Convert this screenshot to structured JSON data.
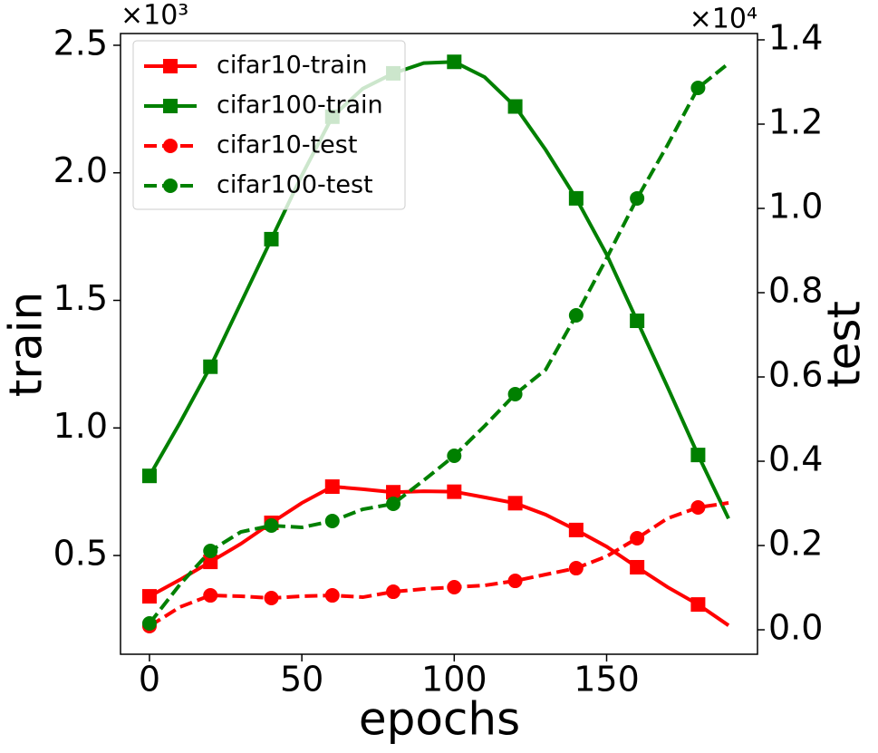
{
  "chart_data": {
    "type": "line",
    "x_label": "epochs",
    "y_label": "train",
    "y2_label": "test",
    "y_offset_label": "×10³",
    "y2_offset_label": "×10⁴",
    "x": [
      0,
      10,
      20,
      30,
      40,
      50,
      60,
      70,
      80,
      90,
      100,
      110,
      120,
      130,
      140,
      150,
      160,
      170,
      180,
      190
    ],
    "series": [
      {
        "name": "cifar10-train",
        "color": "#ff0000",
        "marker": "square",
        "linestyle": "solid",
        "axis": "y",
        "values": [
          340,
          405,
          475,
          546,
          628,
          706,
          770,
          760,
          748,
          752,
          750,
          728,
          705,
          660,
          600,
          535,
          454,
          376,
          308,
          226
        ]
      },
      {
        "name": "cifar100-train",
        "color": "#008000",
        "marker": "square",
        "linestyle": "solid",
        "axis": "y",
        "values": [
          812,
          1020,
          1240,
          1490,
          1740,
          1990,
          2220,
          2330,
          2390,
          2430,
          2435,
          2375,
          2260,
          2090,
          1900,
          1680,
          1420,
          1160,
          894,
          645
        ]
      },
      {
        "name": "cifar10-test",
        "color": "#ff0000",
        "marker": "circle",
        "linestyle": "dashed",
        "axis": "y2",
        "values": [
          86,
          540,
          817,
          796,
          753,
          796,
          817,
          774,
          903,
          968,
          1011,
          1054,
          1161,
          1312,
          1462,
          1742,
          2172,
          2645,
          2903,
          3011
        ]
      },
      {
        "name": "cifar100-test",
        "color": "#008000",
        "marker": "circle",
        "linestyle": "dashed",
        "axis": "y2",
        "values": [
          151,
          1075,
          1871,
          2323,
          2473,
          2430,
          2581,
          2860,
          2989,
          3548,
          4129,
          4839,
          5591,
          6172,
          7462,
          8817,
          10237,
          11505,
          12860,
          13441
        ]
      }
    ],
    "markevery": 2,
    "xlim": [
      -9.5,
      199.5
    ],
    "xticks": [
      0,
      50,
      100,
      150
    ],
    "ylim": [
      113,
      2546
    ],
    "yticks": [
      {
        "value": 500,
        "label": "0.5"
      },
      {
        "value": 1000,
        "label": "1.0"
      },
      {
        "value": 1500,
        "label": "1.5"
      },
      {
        "value": 2000,
        "label": "2.0"
      },
      {
        "value": 2500,
        "label": "2.5"
      }
    ],
    "y2lim": [
      -580,
      14150
    ],
    "y2ticks": [
      {
        "value": 0,
        "label": "0.0"
      },
      {
        "value": 2000,
        "label": "0.2"
      },
      {
        "value": 4000,
        "label": "0.4"
      },
      {
        "value": 6000,
        "label": "0.6"
      },
      {
        "value": 8000,
        "label": "0.8"
      },
      {
        "value": 10000,
        "label": "1.0"
      },
      {
        "value": 12000,
        "label": "1.2"
      },
      {
        "value": 14000,
        "label": "1.4"
      }
    ],
    "legend": "upper left",
    "grid": false
  }
}
